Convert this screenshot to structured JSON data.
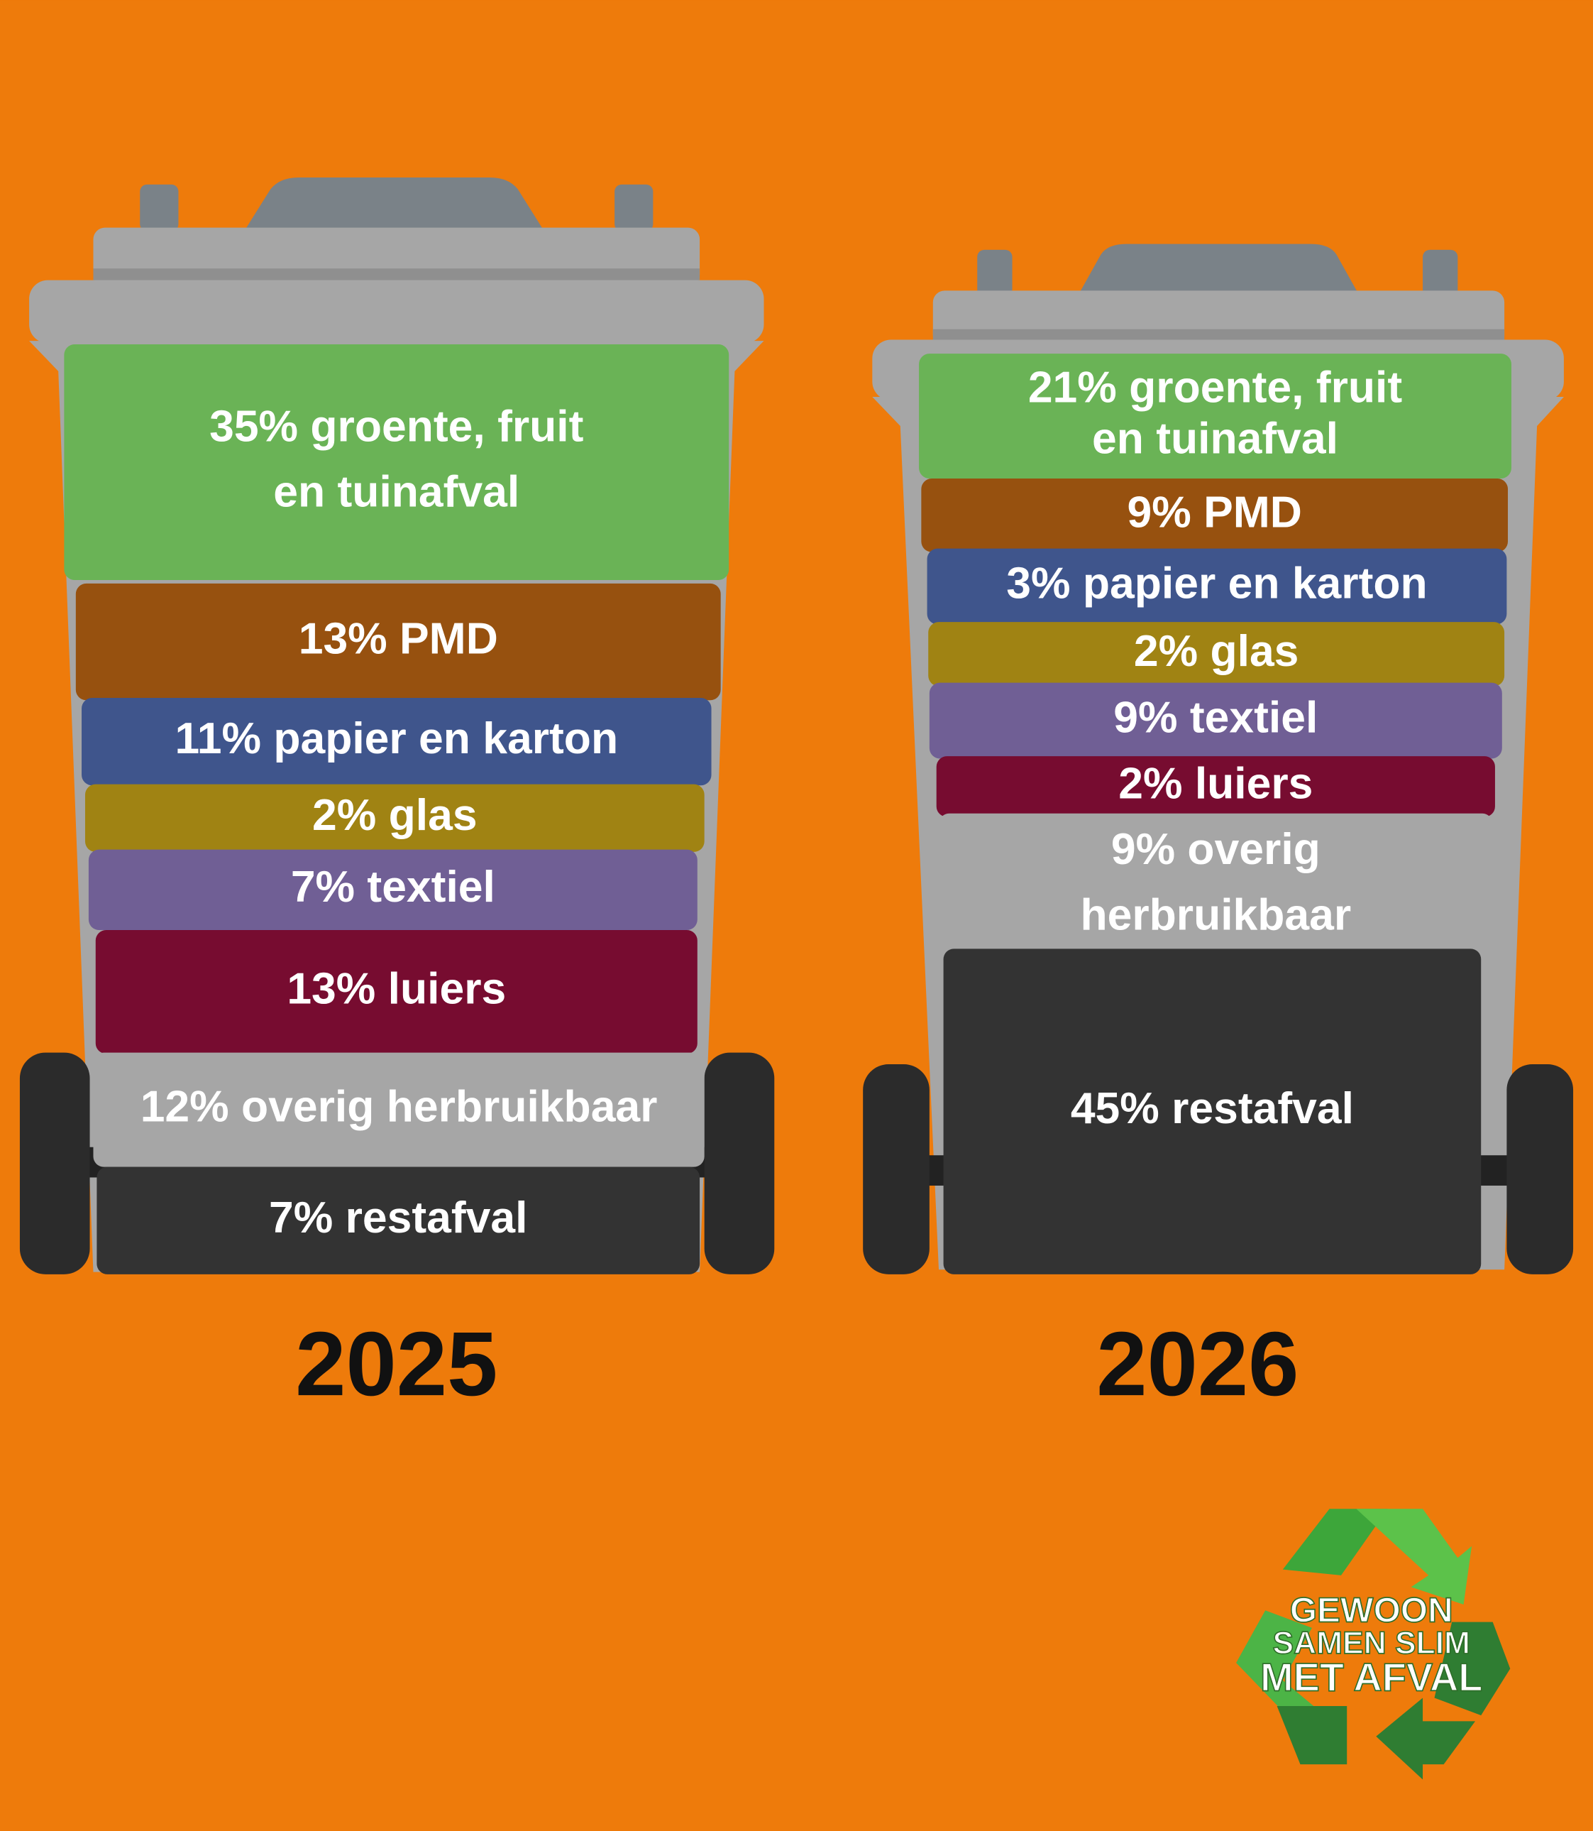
{
  "bins": [
    {
      "year": "2025",
      "segments": [
        {
          "lines": [
            "35% groente, fruit",
            "en tuinafval"
          ],
          "color": "#6ab356"
        },
        {
          "lines": [
            "13% PMD"
          ],
          "color": "#97510f"
        },
        {
          "lines": [
            "11% papier en karton"
          ],
          "color": "#3f558c"
        },
        {
          "lines": [
            "2% glas"
          ],
          "color": "#a08313"
        },
        {
          "lines": [
            "7% textiel"
          ],
          "color": "#705f95"
        },
        {
          "lines": [
            "13% luiers"
          ],
          "color": "#770c30"
        },
        {
          "lines": [
            "12% overig herbruikbaar"
          ],
          "color": "#a6a6a6"
        },
        {
          "lines": [
            "7% restafval"
          ],
          "color": "#333333"
        }
      ]
    },
    {
      "year": "2026",
      "segments": [
        {
          "lines": [
            "21% groente, fruit",
            "en tuinafval"
          ],
          "color": "#6ab356"
        },
        {
          "lines": [
            "9% PMD"
          ],
          "color": "#97510f"
        },
        {
          "lines": [
            "3% papier en karton"
          ],
          "color": "#3f558c"
        },
        {
          "lines": [
            "2% glas"
          ],
          "color": "#a08313"
        },
        {
          "lines": [
            "9% textiel"
          ],
          "color": "#705f95"
        },
        {
          "lines": [
            "2% luiers"
          ],
          "color": "#770c30"
        },
        {
          "lines": [
            "9% overig",
            "herbruikbaar"
          ],
          "color": "#a6a6a6"
        },
        {
          "lines": [
            "45% restafval"
          ],
          "color": "#333333"
        }
      ]
    }
  ],
  "logo": {
    "lines": [
      "GEWOON",
      "SAMEN SLIM",
      "MET AFVAL"
    ]
  }
}
